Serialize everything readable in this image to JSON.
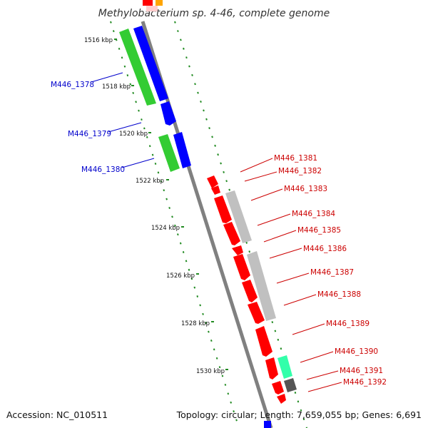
{
  "title": "Methylobacterium sp. 4-46, complete genome",
  "footer": {
    "accession": "Accession: NC_010511",
    "summary": "Topology: circular; Length: 7,659,055 bp; Genes: 6,691"
  },
  "ticks": [
    "1516 kbp",
    "1518 kbp",
    "1520 kbp",
    "1522 kbp",
    "1524 kbp",
    "1526 kbp",
    "1528 kbp",
    "1530 kbp"
  ],
  "colors": {
    "backbone": "#808080",
    "tick_dots": "#228b22",
    "forward_gene": "#0000ff",
    "forward_feature": "#33cc33",
    "reverse_gene": "#ff0000",
    "reverse_feature": "#c0c0c0",
    "aqua_feature": "#33ffaa",
    "dark_feature": "#555555",
    "left_label": "#0000cc",
    "right_label": "#cc0000"
  },
  "left_labels": [
    "M446_1378",
    "M446_1379",
    "M446_1380"
  ],
  "right_labels": [
    "M446_1381",
    "M446_1382",
    "M446_1383",
    "M446_1384",
    "M446_1385",
    "M446_1386",
    "M446_1387",
    "M446_1388",
    "M446_1389",
    "M446_1390",
    "M446_1391",
    "M446_1392"
  ]
}
